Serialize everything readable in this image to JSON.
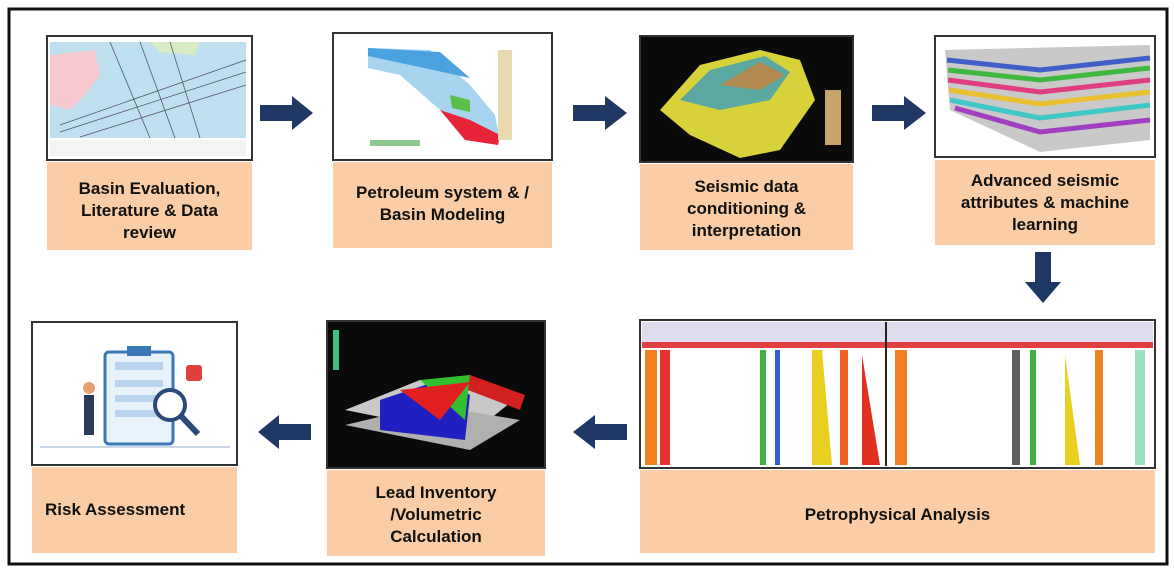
{
  "steps": [
    {
      "label": "Basin Evaluation, Literature & Data review"
    },
    {
      "label": "Petroleum system & / Basin Modeling"
    },
    {
      "label": "Seismic data conditioning & interpretation"
    },
    {
      "label": "Advanced seismic attributes & machine learning"
    },
    {
      "label": "Petrophysical Analysis"
    },
    {
      "label": "Lead Inventory /Volumetric Calculation"
    },
    {
      "label": "Risk Assessment"
    }
  ]
}
